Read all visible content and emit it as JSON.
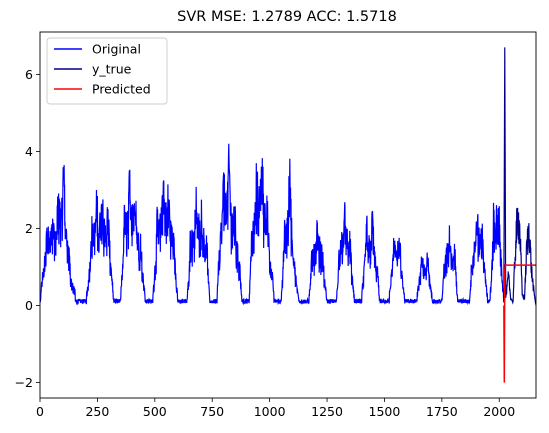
{
  "chart_data": {
    "type": "line",
    "title": "SVR MSE: 1.2789 ACC: 1.5718",
    "xlabel": "",
    "ylabel": "",
    "xlim": [
      0,
      2160
    ],
    "ylim": [
      -2.4,
      7.1
    ],
    "x_ticks": [
      0,
      250,
      500,
      750,
      1000,
      1250,
      1500,
      1750,
      2000
    ],
    "x_tick_labels": [
      "0",
      "250",
      "500",
      "750",
      "1000",
      "1250",
      "1500",
      "1750",
      "2000"
    ],
    "y_ticks": [
      -2,
      0,
      2,
      4,
      6
    ],
    "y_tick_labels": [
      "−2",
      "0",
      "2",
      "4",
      "6"
    ],
    "grid": false,
    "legend_position": "top-left",
    "series": [
      {
        "name": "Original",
        "color": "#0000ff",
        "x_range": [
          0,
          2160
        ],
        "pattern": "daily cycles of ~24 samples, peaks between 1 and 4.2",
        "peak_envelope": [
          [
            0,
            0.1
          ],
          [
            30,
            2.3
          ],
          [
            70,
            2.6
          ],
          [
            100,
            3.9
          ],
          [
            130,
            1.2
          ],
          [
            160,
            0.1
          ],
          [
            200,
            0.1
          ],
          [
            230,
            2.6
          ],
          [
            260,
            3.0
          ],
          [
            300,
            2.5
          ],
          [
            320,
            0.2
          ],
          [
            350,
            0.2
          ],
          [
            370,
            2.8
          ],
          [
            400,
            3.9
          ],
          [
            430,
            2.4
          ],
          [
            460,
            0.2
          ],
          [
            490,
            0.2
          ],
          [
            510,
            2.4
          ],
          [
            540,
            3.6
          ],
          [
            580,
            2.4
          ],
          [
            600,
            0.2
          ],
          [
            640,
            0.2
          ],
          [
            660,
            2.5
          ],
          [
            690,
            3.0
          ],
          [
            720,
            2.4
          ],
          [
            740,
            0.2
          ],
          [
            770,
            0.2
          ],
          [
            790,
            3.0
          ],
          [
            820,
            4.0
          ],
          [
            860,
            2.0
          ],
          [
            880,
            0.2
          ],
          [
            910,
            0.2
          ],
          [
            930,
            3.0
          ],
          [
            960,
            4.2
          ],
          [
            990,
            2.8
          ],
          [
            1020,
            0.2
          ],
          [
            1050,
            0.2
          ],
          [
            1070,
            2.7
          ],
          [
            1090,
            3.7
          ],
          [
            1110,
            1.0
          ],
          [
            1130,
            0.2
          ],
          [
            1170,
            0.2
          ],
          [
            1190,
            1.9
          ],
          [
            1220,
            2.2
          ],
          [
            1250,
            0.2
          ],
          [
            1290,
            0.2
          ],
          [
            1310,
            2.3
          ],
          [
            1340,
            2.6
          ],
          [
            1370,
            0.2
          ],
          [
            1400,
            0.2
          ],
          [
            1420,
            2.1
          ],
          [
            1450,
            2.4
          ],
          [
            1480,
            0.2
          ],
          [
            1520,
            0.2
          ],
          [
            1540,
            1.9
          ],
          [
            1560,
            2.1
          ],
          [
            1590,
            0.2
          ],
          [
            1640,
            0.2
          ],
          [
            1660,
            1.5
          ],
          [
            1690,
            1.3
          ],
          [
            1710,
            0.2
          ],
          [
            1750,
            0.2
          ],
          [
            1770,
            2.0
          ],
          [
            1800,
            2.1
          ],
          [
            1820,
            0.2
          ],
          [
            1870,
            0.2
          ],
          [
            1890,
            2.2
          ],
          [
            1920,
            2.6
          ],
          [
            1950,
            0.2
          ],
          [
            1960,
            0.3
          ],
          [
            1975,
            2.5
          ],
          [
            1990,
            3.3
          ],
          [
            2010,
            1.5
          ],
          [
            2020,
            0.2
          ]
        ]
      },
      {
        "name": "y_true",
        "color": "#00008b",
        "x_range": [
          2020,
          2160
        ],
        "points": [
          [
            2020,
            0.2
          ],
          [
            2024,
            6.7
          ],
          [
            2028,
            0.2
          ],
          [
            2040,
            0.8
          ],
          [
            2050,
            0.2
          ],
          [
            2060,
            0.1
          ],
          [
            2070,
            1.5
          ],
          [
            2080,
            2.5
          ],
          [
            2090,
            2.0
          ],
          [
            2100,
            0.3
          ],
          [
            2110,
            0.2
          ],
          [
            2120,
            1.6
          ],
          [
            2130,
            2.1
          ],
          [
            2140,
            1.0
          ],
          [
            2150,
            0.4
          ],
          [
            2160,
            0.0
          ]
        ]
      },
      {
        "name": "Predicted",
        "color": "#ff0000",
        "x_range": [
          2020,
          2160
        ],
        "points": [
          [
            2020,
            0.0
          ],
          [
            2022,
            -2.0
          ],
          [
            2024,
            0.9
          ],
          [
            2026,
            1.05
          ],
          [
            2160,
            1.05
          ]
        ]
      }
    ]
  }
}
